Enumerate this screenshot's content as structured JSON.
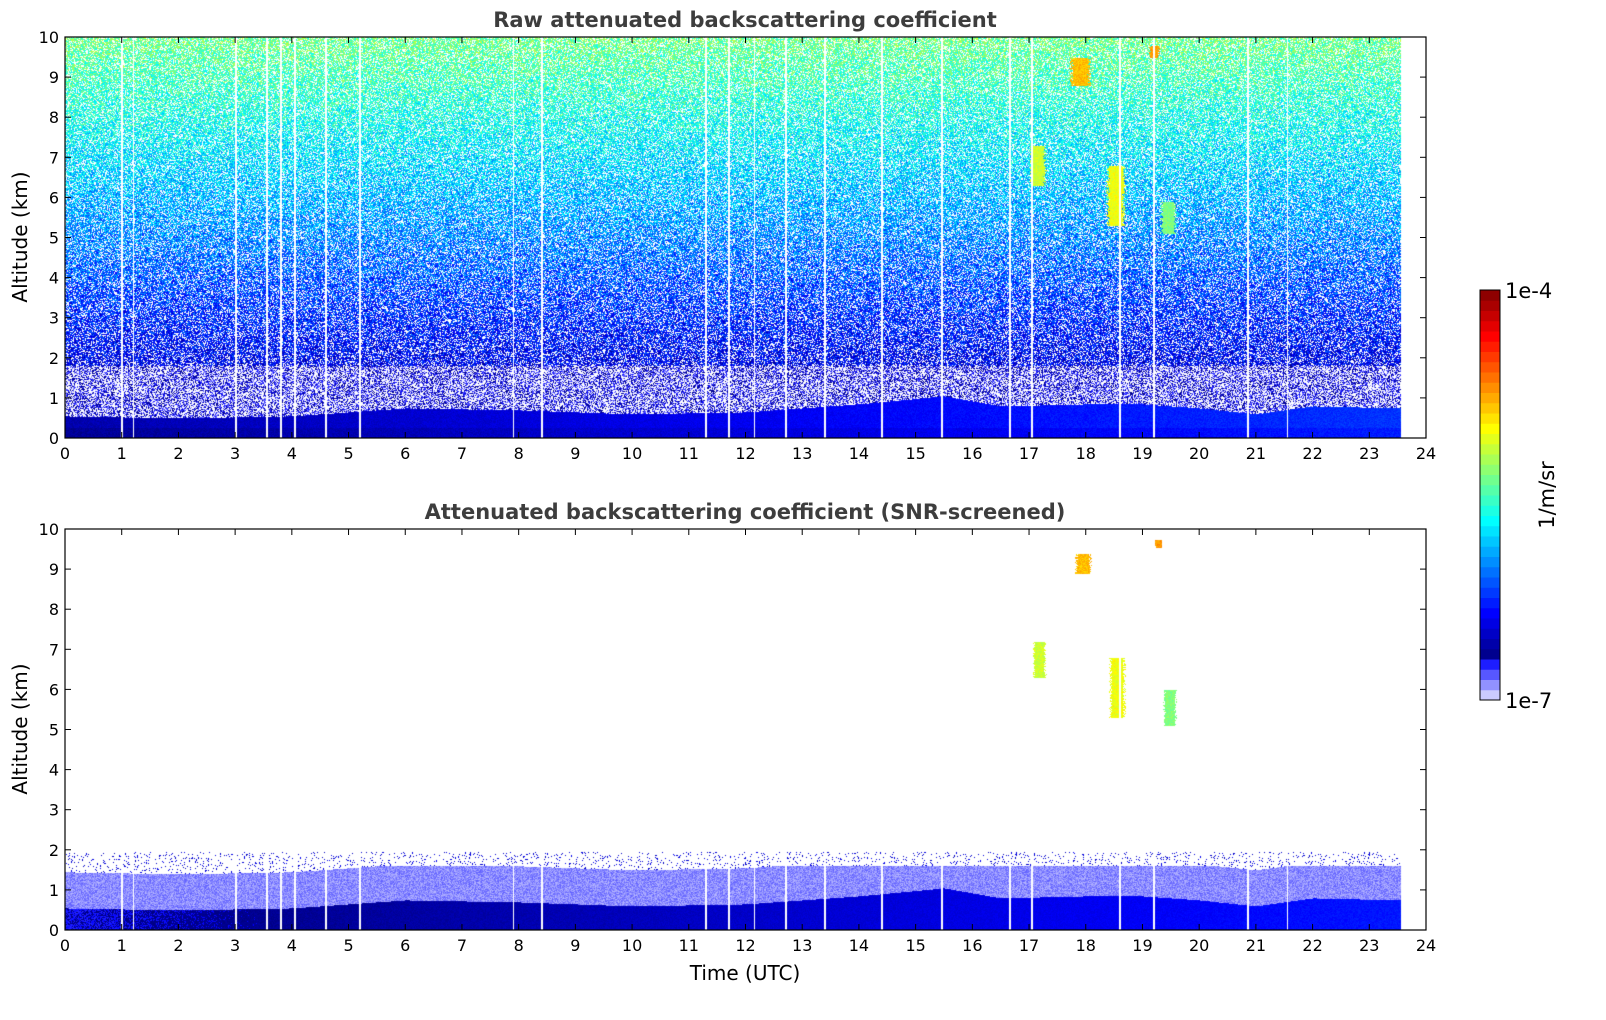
{
  "chart_data": [
    {
      "type": "heatmap",
      "title": "Raw attenuated backscattering coefficient",
      "xlabel": "",
      "ylabel": "Altitude (km)",
      "xlim": [
        0,
        24
      ],
      "ylim": [
        0,
        10
      ],
      "x_ticks": [
        "0",
        "1",
        "2",
        "3",
        "4",
        "5",
        "6",
        "7",
        "8",
        "9",
        "10",
        "11",
        "12",
        "13",
        "14",
        "15",
        "16",
        "17",
        "18",
        "19",
        "20",
        "21",
        "22",
        "23",
        "24"
      ],
      "y_ticks": [
        "0",
        "1",
        "2",
        "3",
        "4",
        "5",
        "6",
        "7",
        "8",
        "9",
        "10"
      ],
      "data_end_time_utc": 23.55,
      "boundary_layer_top_km": [
        [
          0,
          0.55
        ],
        [
          2,
          0.5
        ],
        [
          4,
          0.55
        ],
        [
          6,
          0.75
        ],
        [
          8,
          0.7
        ],
        [
          10,
          0.6
        ],
        [
          12,
          0.65
        ],
        [
          14,
          0.85
        ],
        [
          15.5,
          1.05
        ],
        [
          16.5,
          0.8
        ],
        [
          18,
          0.85
        ],
        [
          19,
          0.85
        ],
        [
          20,
          0.75
        ],
        [
          21,
          0.6
        ],
        [
          22,
          0.8
        ],
        [
          23.55,
          0.75
        ]
      ],
      "gaps_utc": [
        1.0,
        1.2,
        3.0,
        3.55,
        3.8,
        4.05,
        4.6,
        5.2,
        7.9,
        8.4,
        11.3,
        11.7,
        12.15,
        12.7,
        13.4,
        14.4,
        15.45,
        16.65,
        17.05,
        18.6,
        19.2,
        20.85,
        21.55
      ],
      "features": [
        {
          "t_start": 17.0,
          "t_end": 17.3,
          "z_bottom_km": 6.3,
          "z_top_km": 7.3,
          "level": 0.62
        },
        {
          "t_start": 17.7,
          "t_end": 18.1,
          "z_bottom_km": 8.8,
          "z_top_km": 9.5,
          "level": 0.72
        },
        {
          "t_start": 18.35,
          "t_end": 18.7,
          "z_bottom_km": 5.3,
          "z_top_km": 6.8,
          "level": 0.65
        },
        {
          "t_start": 19.3,
          "t_end": 19.6,
          "z_bottom_km": 5.1,
          "z_top_km": 5.9,
          "level": 0.55
        },
        {
          "t_start": 19.1,
          "t_end": 19.3,
          "z_bottom_km": 9.5,
          "z_top_km": 9.8,
          "level": 0.75
        }
      ]
    },
    {
      "type": "heatmap",
      "title": "Attenuated backscattering coefficient (SNR-screened)",
      "xlabel": "Time (UTC)",
      "ylabel": "Altitude (km)",
      "xlim": [
        0,
        24
      ],
      "ylim": [
        0,
        10
      ],
      "x_ticks": [
        "0",
        "1",
        "2",
        "3",
        "4",
        "5",
        "6",
        "7",
        "8",
        "9",
        "10",
        "11",
        "12",
        "13",
        "14",
        "15",
        "16",
        "17",
        "18",
        "19",
        "20",
        "21",
        "22",
        "23",
        "24"
      ],
      "y_ticks": [
        "0",
        "1",
        "2",
        "3",
        "4",
        "5",
        "6",
        "7",
        "8",
        "9",
        "10"
      ],
      "data_end_time_utc": 23.55,
      "screened_top_km": 1.6,
      "features": [
        {
          "t_start": 17.05,
          "t_end": 17.3,
          "z_bottom_km": 6.3,
          "z_top_km": 7.2,
          "level": 0.62
        },
        {
          "t_start": 17.8,
          "t_end": 18.1,
          "z_bottom_km": 8.9,
          "z_top_km": 9.4,
          "level": 0.72
        },
        {
          "t_start": 18.4,
          "t_end": 18.7,
          "z_bottom_km": 5.3,
          "z_top_km": 6.8,
          "level": 0.65
        },
        {
          "t_start": 19.35,
          "t_end": 19.6,
          "z_bottom_km": 5.1,
          "z_top_km": 6.0,
          "level": 0.55
        },
        {
          "t_start": 19.2,
          "t_end": 19.35,
          "z_bottom_km": 9.55,
          "z_top_km": 9.75,
          "level": 0.75
        }
      ]
    }
  ],
  "colorbar": {
    "label": "1/m/sr",
    "max_label": "1e-4",
    "min_label": "1e-7",
    "scale": "log",
    "range": [
      1e-07,
      0.0001
    ],
    "colormap": "jet-with-white-low"
  },
  "colors": {
    "title": "#3d3d3d",
    "background": "#ffffff"
  }
}
